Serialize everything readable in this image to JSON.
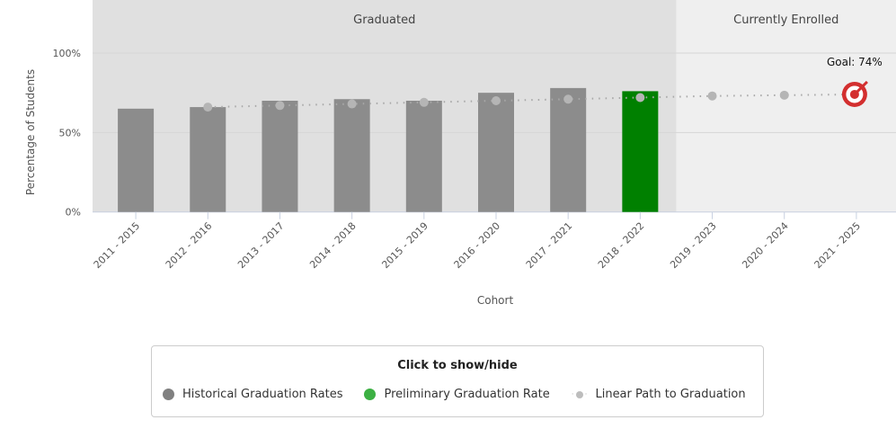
{
  "chart_data": {
    "type": "bar",
    "xlabel": "Cohort",
    "ylabel": "Percentage of Students",
    "ylim": [
      0,
      100
    ],
    "yticks": [
      "0%",
      "50%",
      "100%"
    ],
    "categories": [
      "2011 - 2015",
      "2012 - 2016",
      "2013 - 2017",
      "2014 - 2018",
      "2015 - 2019",
      "2016 - 2020",
      "2017 - 2021",
      "2018 - 2022",
      "2019 - 2023",
      "2020 - 2024",
      "2021 - 2025"
    ],
    "bands": [
      {
        "label": "Graduated",
        "from": "2011 - 2015",
        "to": "2018 - 2022",
        "color": "#e0e0e0"
      },
      {
        "label": "Currently Enrolled",
        "from": "2019 - 2023",
        "to": "2021 - 2025",
        "color": "#efefef"
      }
    ],
    "series": [
      {
        "name": "Historical Graduation Rates",
        "type": "bar",
        "color": "#8c8c8c",
        "values": [
          65,
          66,
          70,
          71,
          70,
          75,
          78,
          null,
          null,
          null,
          null
        ]
      },
      {
        "name": "Preliminary Graduation Rate",
        "type": "bar",
        "color": "#008000",
        "values": [
          null,
          null,
          null,
          null,
          null,
          null,
          null,
          76,
          null,
          null,
          null
        ]
      },
      {
        "name": "Linear Path to Graduation",
        "type": "line",
        "color": "#b0b0b0",
        "style": "dotted",
        "values": [
          null,
          66,
          67,
          68,
          69,
          70,
          71,
          72,
          73,
          73.5,
          74
        ]
      }
    ],
    "goal": {
      "label": "Goal: 74%",
      "value": 74,
      "category": "2021 - 2025",
      "icon": "target-icon",
      "color": "#d32f2f"
    },
    "grid": true
  },
  "legend": {
    "title": "Click to show/hide",
    "placement": "bottom",
    "legend_colors": [
      "#808080",
      "#3cb043",
      "#bdbdbd"
    ]
  }
}
